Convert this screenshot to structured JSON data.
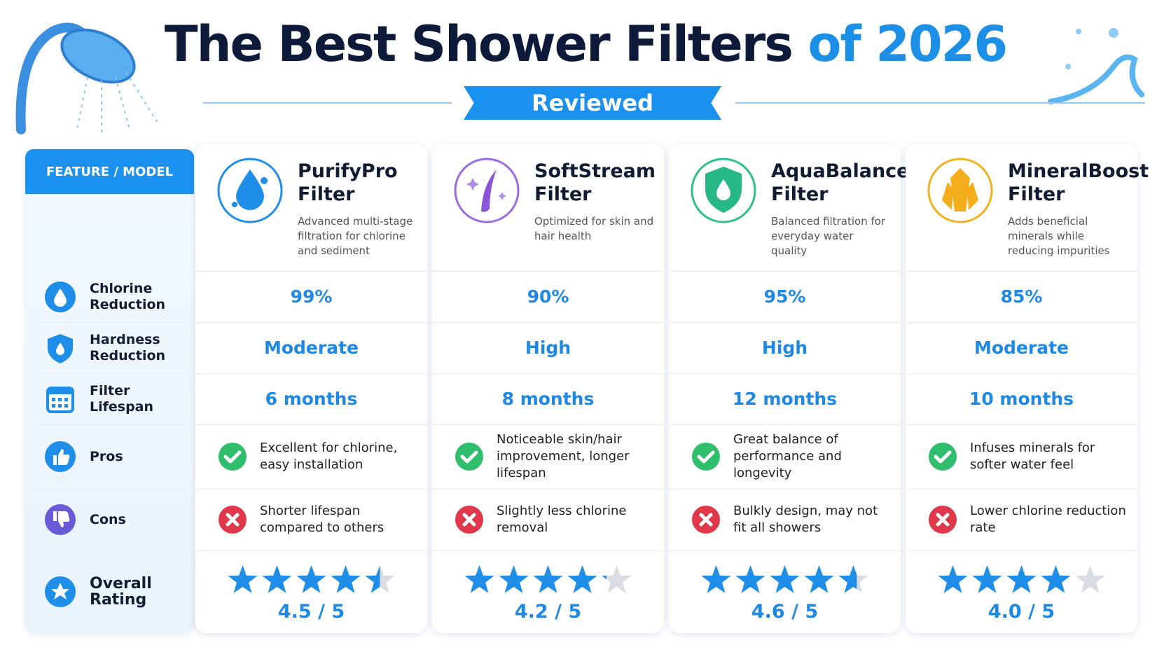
{
  "header": {
    "title": "The Best Shower Filters",
    "title_highlight": "of 2026",
    "subtitle": "Reviewed"
  },
  "table": {
    "corner": "FEATURE / MODEL",
    "models": [
      {
        "name": "PurifyPro Filter",
        "description": "Advanced multi-stage filtration for chlorine and sediment"
      },
      {
        "name": "SoftStream Filter",
        "description": "Optimized for skin and hair health"
      },
      {
        "name": "AquaBalance Filter",
        "description": "Balanced filtration for everyday water quality"
      },
      {
        "name": "MineralBoost Filter",
        "description": "Adds beneficial minerals while reducing impurities"
      }
    ],
    "features": [
      "Chlorine Reduction",
      "Hardness Reduction",
      "Filter Lifespan",
      "Pros",
      "Cons",
      "Overall Rating"
    ],
    "rows": [
      [
        "99%",
        "90%",
        "95%",
        "85%"
      ],
      [
        "Moderate",
        "High",
        "High",
        "Moderate"
      ],
      [
        "6 months",
        "8 months",
        "12 months",
        "10 months"
      ],
      [
        "Excellent for chlorine, easy installation",
        "Noticeable skin/hair improvement, longer lifespan",
        "Great balance of performance and longevity",
        "Infuses minerals for softer water feel"
      ],
      [
        "Shorter lifespan compared to others",
        "Slightly less chlorine removal",
        "Bulkly design, may not fit all showers",
        "Lower chlorine reduction rate"
      ]
    ],
    "ratings": [
      4.5,
      4.2,
      4.6,
      4.0
    ],
    "rating_labels": [
      "4.5 / 5",
      "4.2 / 5",
      "4.6 / 5",
      "4.0 / 5"
    ],
    "rating_scale": 5
  }
}
